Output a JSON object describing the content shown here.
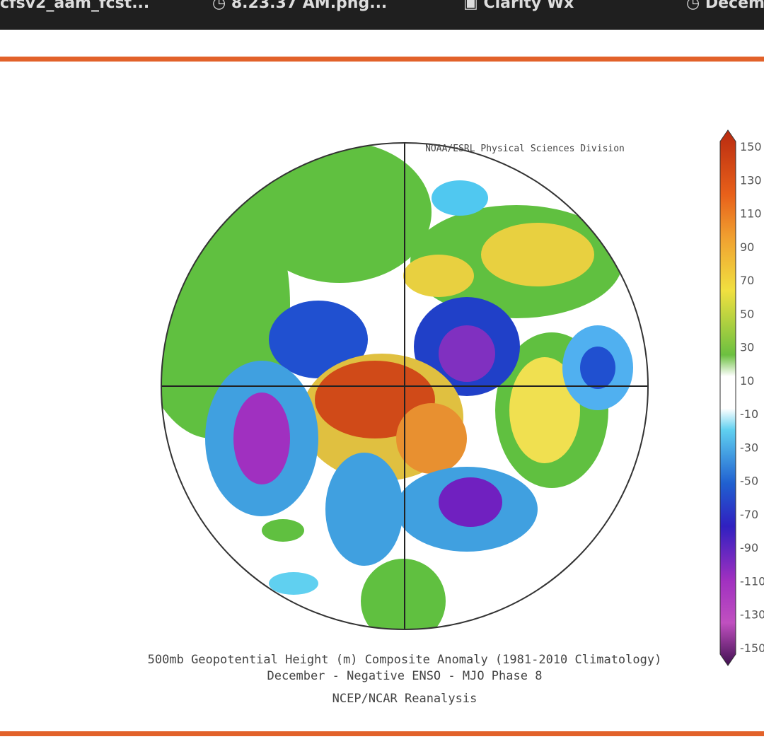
{
  "tabs": [
    "cfsv2_aam_fcst...",
    "8.23.37 AM.png...",
    "Clarity Wx",
    "Decem"
  ],
  "map": {
    "credit": "NOAA/ESRL Physical Sciences Division",
    "caption": [
      "500mb Geopotential Height (m) Composite Anomaly (1981-2010 Climatology)",
      "December - Negative ENSO - MJO Phase 8",
      "NCEP/NCAR Reanalysis"
    ],
    "colorbar_labels": [
      150,
      130,
      110,
      90,
      70,
      50,
      30,
      10,
      -10,
      -30,
      -50,
      -70,
      -90,
      -110,
      -130,
      -150
    ]
  }
}
